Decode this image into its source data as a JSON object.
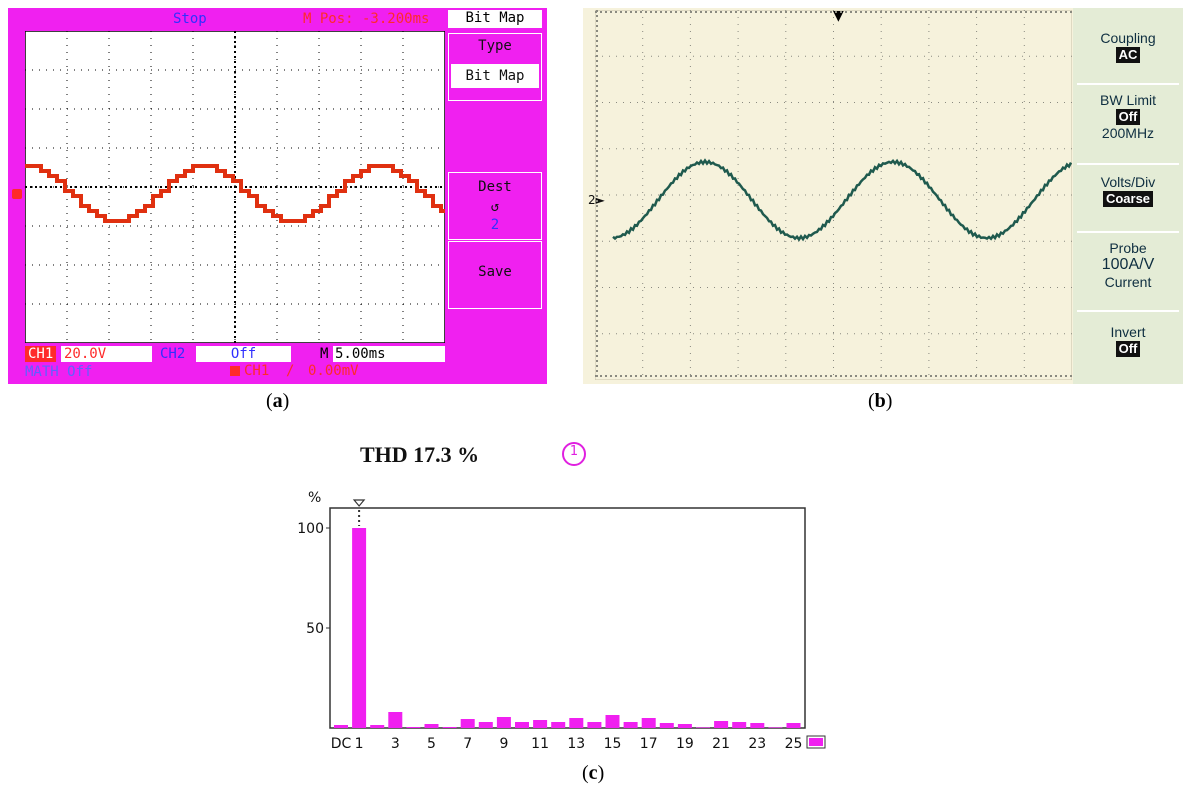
{
  "panel_a": {
    "status": "Stop",
    "mpos": "M Pos: -3.200ms",
    "header_menu": "Bit Map",
    "menu": {
      "type_title": "Type",
      "type_value": "Bit Map",
      "dest_title": "Dest",
      "dest_icon": "↺",
      "dest_value": "2",
      "save_label": "Save"
    },
    "bottom": {
      "ch1_label": "CH1",
      "ch1_value": "20.0V",
      "ch2_label": "CH2",
      "ch2_value": "Off",
      "m_label": "M",
      "m_value": "5.00ms",
      "math": "MATH Off",
      "trig_ch": "CH1",
      "trig_slope": "/",
      "trig_level": "0.00mV"
    },
    "marker_label": "1",
    "colors": {
      "background": "#f020f0",
      "trace": "#e03010",
      "text_blue": "#3030ff"
    }
  },
  "panel_b": {
    "channel_marker": "2",
    "menu": {
      "coupling_title": "Coupling",
      "coupling_value": "AC",
      "bw_title": "BW Limit",
      "bw_value": "Off",
      "bw_freq": "200MHz",
      "volts_title": "Volts/Div",
      "volts_value": "Coarse",
      "probe_title": "Probe",
      "probe_value": "100A/V",
      "probe_type": "Current",
      "invert_title": "Invert",
      "invert_value": "Off"
    },
    "colors": {
      "background": "#f6f2dc",
      "trace": "#1f5a4e"
    }
  },
  "labels": {
    "a": "a",
    "b": "b",
    "c": "c"
  },
  "panel_c": {
    "title": "THD 17.3 %",
    "badge": "1",
    "colors": {
      "bar": "#f020f0"
    }
  },
  "chart_data": {
    "type": "bar",
    "title": "THD 17.3 %",
    "ylabel": "%",
    "ylim": [
      0,
      110
    ],
    "yticks": [
      50,
      100
    ],
    "categories": [
      "DC",
      "1",
      "2",
      "3",
      "4",
      "5",
      "6",
      "7",
      "8",
      "9",
      "10",
      "11",
      "12",
      "13",
      "14",
      "15",
      "16",
      "17",
      "18",
      "19",
      "20",
      "21",
      "22",
      "23",
      "24",
      "25"
    ],
    "tick_labels": [
      "DC",
      "1",
      "3",
      "5",
      "7",
      "9",
      "11",
      "13",
      "15",
      "17",
      "19",
      "21",
      "23",
      "25"
    ],
    "values": [
      1.5,
      100,
      1.5,
      8,
      0.5,
      2,
      0.5,
      4.5,
      3,
      5.5,
      3,
      4,
      3,
      5,
      3,
      6.5,
      3,
      5,
      2.5,
      2,
      0.3,
      3.5,
      3,
      2.5,
      0.3,
      2.5
    ]
  }
}
